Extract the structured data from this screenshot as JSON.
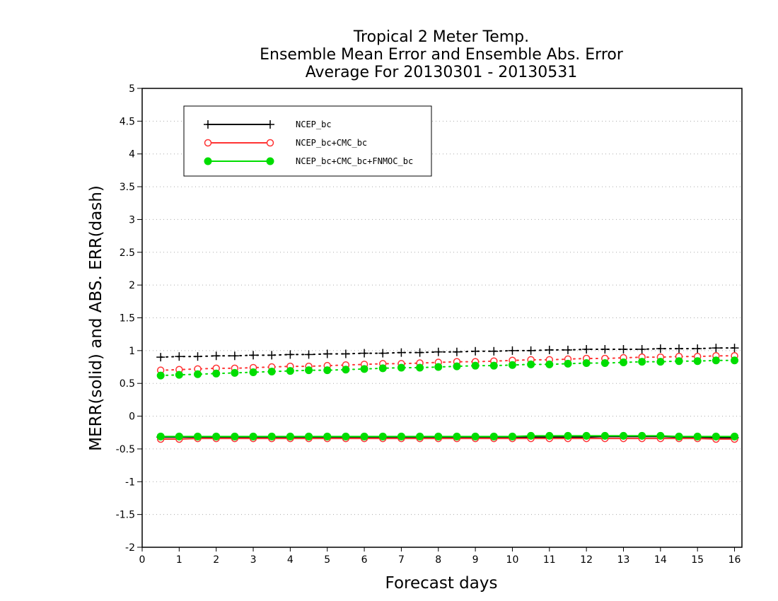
{
  "chart_data": {
    "type": "line",
    "title_lines": [
      "Tropical 2 Meter Temp.",
      "Ensemble Mean Error and Ensemble Abs. Error",
      "Average For 20130301 - 20130531"
    ],
    "xlabel": "Forecast days",
    "ylabel": "MERR(solid) and ABS. ERR(dash)",
    "xlim": [
      0,
      16.2
    ],
    "ylim": [
      -2,
      5
    ],
    "xticks": [
      0,
      1,
      2,
      3,
      4,
      5,
      6,
      7,
      8,
      9,
      10,
      11,
      12,
      13,
      14,
      15,
      16
    ],
    "xtick_labels": [
      "0",
      "1",
      "2",
      "3",
      "4",
      "5",
      "6",
      "7",
      "8",
      "9",
      "10",
      "11",
      "12",
      "13",
      "14",
      "15",
      "16"
    ],
    "yticks": [
      -2,
      -1.5,
      -1,
      -0.5,
      0,
      0.5,
      1,
      1.5,
      2,
      2.5,
      3,
      3.5,
      4,
      4.5,
      5
    ],
    "ytick_labels": [
      "-2",
      "-1.5",
      "-1",
      "-0.5",
      "0",
      "0.5",
      "1",
      "1.5",
      "2",
      "2.5",
      "3",
      "3.5",
      "4",
      "4.5",
      "5"
    ],
    "grid": "horizontal-dotted",
    "legend_position": "top-left",
    "x": [
      0.5,
      1,
      1.5,
      2,
      2.5,
      3,
      3.5,
      4,
      4.5,
      5,
      5.5,
      6,
      6.5,
      7,
      7.5,
      8,
      8.5,
      9,
      9.5,
      10,
      10.5,
      11,
      11.5,
      12,
      12.5,
      13,
      13.5,
      14,
      14.5,
      15,
      15.5,
      16
    ],
    "series": [
      {
        "name": "NCEP_bc",
        "color": "#000000",
        "marker": "plus",
        "mean_error": [
          -0.32,
          -0.32,
          -0.32,
          -0.32,
          -0.32,
          -0.32,
          -0.32,
          -0.32,
          -0.32,
          -0.32,
          -0.32,
          -0.32,
          -0.32,
          -0.32,
          -0.32,
          -0.32,
          -0.32,
          -0.32,
          -0.32,
          -0.32,
          -0.32,
          -0.32,
          -0.32,
          -0.32,
          -0.31,
          -0.31,
          -0.31,
          -0.31,
          -0.32,
          -0.32,
          -0.33,
          -0.33
        ],
        "abs_error": [
          0.9,
          0.91,
          0.91,
          0.92,
          0.92,
          0.93,
          0.93,
          0.94,
          0.94,
          0.95,
          0.95,
          0.96,
          0.96,
          0.97,
          0.97,
          0.98,
          0.98,
          0.99,
          0.99,
          1.0,
          1.0,
          1.01,
          1.01,
          1.02,
          1.02,
          1.02,
          1.02,
          1.03,
          1.03,
          1.03,
          1.04,
          1.04
        ]
      },
      {
        "name": "NCEP_bc+CMC_bc",
        "color": "#ff3333",
        "marker": "open-circle",
        "mean_error": [
          -0.35,
          -0.35,
          -0.34,
          -0.34,
          -0.34,
          -0.34,
          -0.34,
          -0.34,
          -0.34,
          -0.34,
          -0.34,
          -0.34,
          -0.34,
          -0.34,
          -0.34,
          -0.34,
          -0.34,
          -0.34,
          -0.34,
          -0.34,
          -0.34,
          -0.34,
          -0.34,
          -0.34,
          -0.34,
          -0.34,
          -0.34,
          -0.34,
          -0.34,
          -0.34,
          -0.35,
          -0.35
        ],
        "abs_error": [
          0.7,
          0.71,
          0.72,
          0.73,
          0.73,
          0.74,
          0.75,
          0.76,
          0.76,
          0.77,
          0.78,
          0.79,
          0.8,
          0.8,
          0.81,
          0.82,
          0.83,
          0.83,
          0.84,
          0.85,
          0.86,
          0.86,
          0.87,
          0.88,
          0.88,
          0.89,
          0.9,
          0.9,
          0.91,
          0.91,
          0.92,
          0.92
        ]
      },
      {
        "name": "NCEP_bc+CMC_bc+FNMOC_bc",
        "color": "#00dd00",
        "marker": "filled-circle",
        "mean_error": [
          -0.31,
          -0.31,
          -0.31,
          -0.31,
          -0.31,
          -0.31,
          -0.31,
          -0.31,
          -0.31,
          -0.31,
          -0.31,
          -0.31,
          -0.31,
          -0.31,
          -0.31,
          -0.31,
          -0.31,
          -0.31,
          -0.31,
          -0.31,
          -0.3,
          -0.3,
          -0.3,
          -0.3,
          -0.3,
          -0.3,
          -0.3,
          -0.3,
          -0.31,
          -0.31,
          -0.31,
          -0.31
        ],
        "abs_error": [
          0.62,
          0.63,
          0.64,
          0.65,
          0.66,
          0.67,
          0.68,
          0.69,
          0.7,
          0.7,
          0.71,
          0.72,
          0.73,
          0.74,
          0.74,
          0.75,
          0.76,
          0.77,
          0.77,
          0.78,
          0.79,
          0.79,
          0.8,
          0.81,
          0.81,
          0.82,
          0.83,
          0.83,
          0.84,
          0.84,
          0.85,
          0.85
        ]
      }
    ]
  }
}
